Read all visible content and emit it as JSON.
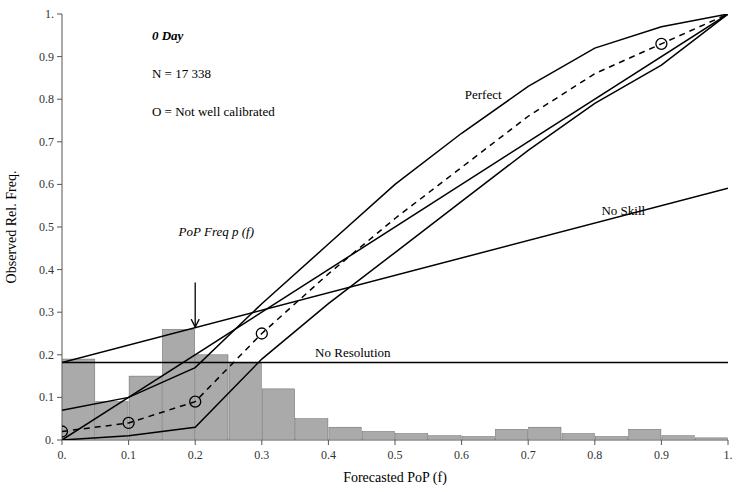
{
  "chart_data": {
    "type": "line",
    "xlabel": "Forecasted PoP (f)",
    "ylabel": "Observed Rel. Freq.",
    "xlim": [
      0,
      1.0
    ],
    "ylim": [
      0,
      1.0
    ],
    "xticks": [
      {
        "value": 0.0,
        "label": "0."
      },
      0.1,
      0.2,
      0.3,
      0.4,
      0.5,
      0.6,
      0.7,
      0.8,
      0.9,
      {
        "value": 1.0,
        "label": "1."
      }
    ],
    "yticks": [
      {
        "value": 0.0,
        "label": "0."
      },
      0.1,
      0.2,
      0.3,
      0.4,
      0.5,
      0.6,
      0.7,
      0.8,
      0.9,
      {
        "value": 1.0,
        "label": "1."
      }
    ],
    "grid": false,
    "series": [
      {
        "type": "histogram",
        "color": "#aaaaaa",
        "bins": [
          0.0,
          0.05,
          0.1,
          0.15,
          0.2,
          0.25,
          0.3,
          0.35,
          0.4,
          0.45,
          0.5,
          0.55,
          0.6,
          0.65,
          0.7,
          0.75,
          0.8,
          0.85,
          0.9,
          0.95,
          1.0
        ],
        "values": [
          0.19,
          0.09,
          0.15,
          0.26,
          0.2,
          0.18,
          0.12,
          0.05,
          0.03,
          0.02,
          0.015,
          0.01,
          0.008,
          0.025,
          0.03,
          0.015,
          0.008,
          0.025,
          0.01,
          0.005
        ]
      },
      {
        "type": "hline",
        "label": "No Resolution",
        "color": "#000000",
        "value": 0.182
      },
      {
        "type": "line",
        "label": "No Skill",
        "color": "#000000",
        "x": [
          0.0,
          1.0
        ],
        "values": [
          0.182,
          0.591
        ]
      },
      {
        "type": "line",
        "label": "Perfect",
        "color": "#000000",
        "x": [
          0.0,
          1.0
        ],
        "values": [
          0.0,
          1.0
        ]
      },
      {
        "type": "line",
        "color": "#000000",
        "x": [
          0.0,
          0.1,
          0.2,
          0.3,
          0.4,
          0.5,
          0.6,
          0.7,
          0.8,
          0.9,
          1.0
        ],
        "values": [
          0.07,
          0.1,
          0.17,
          0.32,
          0.46,
          0.6,
          0.72,
          0.83,
          0.92,
          0.97,
          1.0
        ]
      },
      {
        "type": "line",
        "color": "#000000",
        "x": [
          0.0,
          0.1,
          0.2,
          0.3,
          0.4,
          0.5,
          0.6,
          0.7,
          0.8,
          0.9,
          1.0
        ],
        "values": [
          0.0,
          0.01,
          0.03,
          0.19,
          0.32,
          0.44,
          0.56,
          0.68,
          0.79,
          0.88,
          1.0
        ]
      },
      {
        "type": "line",
        "line_style": "dashed",
        "color": "#000000",
        "x": [
          0.0,
          0.1,
          0.2,
          0.3,
          0.4,
          0.5,
          0.6,
          0.7,
          0.8,
          0.9,
          1.0
        ],
        "values": [
          0.02,
          0.04,
          0.09,
          0.25,
          0.39,
          0.52,
          0.64,
          0.76,
          0.86,
          0.93,
          1.0
        ]
      },
      {
        "type": "scatter",
        "marker": "circle-open",
        "color": "#000000",
        "x": [
          0.0,
          0.1,
          0.2,
          0.3,
          0.9
        ],
        "values": [
          0.02,
          0.04,
          0.09,
          0.25,
          0.93
        ]
      }
    ],
    "notes": [
      "0 Day",
      "N = 17 338",
      "O = Not well calibrated"
    ],
    "arrow": {
      "label": "PoP Freq p (f)",
      "x": 0.2,
      "y_start": 0.37,
      "y_end": 0.265
    }
  }
}
